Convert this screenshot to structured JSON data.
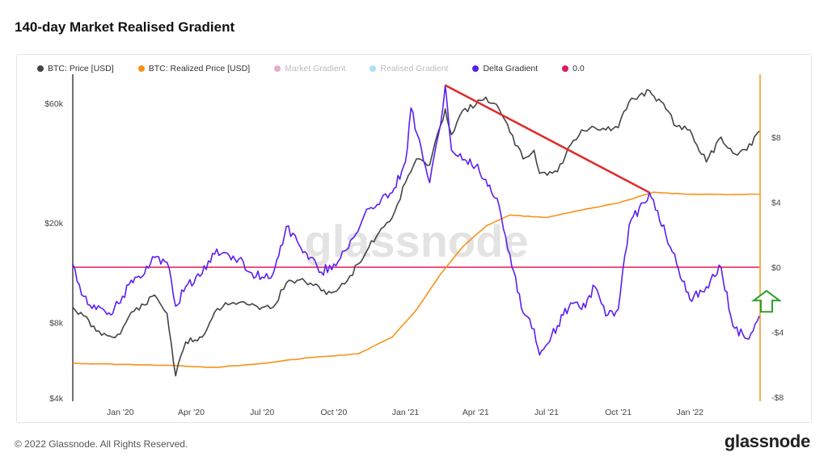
{
  "page": {
    "title": "140-day Market Realised Gradient",
    "footer": "© 2022 Glassnode. All Rights Reserved.",
    "brand": "glassnode",
    "watermark": "glassnode"
  },
  "legend": [
    {
      "label": "BTC: Price [USD]",
      "color": "#444444",
      "faded": false
    },
    {
      "label": "BTC: Realized Price [USD]",
      "color": "#f7931a",
      "faded": false
    },
    {
      "label": "Market Gradient",
      "color": "#d58ab5",
      "faded": true
    },
    {
      "label": "Realised Gradient",
      "color": "#8fd0e6",
      "faded": true
    },
    {
      "label": "Delta Gradient",
      "color": "#5b1ff0",
      "faded": false
    },
    {
      "label": "0.0",
      "color": "#e0185a",
      "faded": false
    }
  ],
  "chart_data": {
    "type": "line",
    "title": "140-day Market Realised Gradient",
    "x_ticks": [
      "Jan '20",
      "Apr '20",
      "Jul '20",
      "Oct '20",
      "Jan '21",
      "Apr '21",
      "Jul '21",
      "Oct '21",
      "Jan '22"
    ],
    "y_left": {
      "scale": "log",
      "ticks": [
        "$4k",
        "$8k",
        "$20k",
        "$60k"
      ],
      "tick_values": [
        4000,
        8000,
        20000,
        60000
      ]
    },
    "y_right": {
      "ticks": [
        "$8",
        "$4",
        "$0",
        "-$4",
        "-$8"
      ],
      "tick_values": [
        8,
        4,
        0,
        -4,
        -8
      ],
      "range": [
        -8,
        12
      ]
    },
    "series": [
      {
        "name": "BTC: Price [USD]",
        "axis": "left",
        "color": "#444444",
        "points": [
          [
            "2019-11-01",
            9200
          ],
          [
            "2019-11-15",
            8500
          ],
          [
            "2019-12-01",
            7400
          ],
          [
            "2019-12-15",
            7100
          ],
          [
            "2020-01-01",
            7200
          ],
          [
            "2020-01-15",
            8800
          ],
          [
            "2020-02-01",
            9400
          ],
          [
            "2020-02-14",
            10300
          ],
          [
            "2020-03-01",
            8700
          ],
          [
            "2020-03-12",
            4900
          ],
          [
            "2020-03-25",
            6700
          ],
          [
            "2020-04-15",
            7000
          ],
          [
            "2020-05-01",
            8800
          ],
          [
            "2020-05-15",
            9600
          ],
          [
            "2020-06-01",
            9600
          ],
          [
            "2020-06-15",
            9400
          ],
          [
            "2020-07-01",
            9200
          ],
          [
            "2020-07-15",
            9200
          ],
          [
            "2020-08-01",
            11500
          ],
          [
            "2020-08-15",
            11800
          ],
          [
            "2020-09-01",
            11500
          ],
          [
            "2020-09-15",
            10700
          ],
          [
            "2020-10-01",
            10600
          ],
          [
            "2020-10-15",
            11400
          ],
          [
            "2020-11-01",
            13700
          ],
          [
            "2020-11-15",
            16000
          ],
          [
            "2020-12-01",
            19000
          ],
          [
            "2020-12-15",
            21000
          ],
          [
            "2021-01-01",
            29000
          ],
          [
            "2021-01-15",
            36000
          ],
          [
            "2021-02-01",
            34000
          ],
          [
            "2021-02-15",
            49000
          ],
          [
            "2021-02-21",
            57000
          ],
          [
            "2021-03-01",
            45000
          ],
          [
            "2021-03-15",
            56000
          ],
          [
            "2021-04-01",
            59000
          ],
          [
            "2021-04-14",
            63500
          ],
          [
            "2021-05-01",
            57000
          ],
          [
            "2021-05-15",
            46000
          ],
          [
            "2021-06-01",
            36000
          ],
          [
            "2021-06-15",
            39000
          ],
          [
            "2021-06-22",
            31500
          ],
          [
            "2021-07-15",
            32000
          ],
          [
            "2021-08-01",
            41000
          ],
          [
            "2021-08-15",
            47000
          ],
          [
            "2021-09-01",
            48000
          ],
          [
            "2021-09-15",
            47000
          ],
          [
            "2021-10-01",
            48000
          ],
          [
            "2021-10-15",
            61000
          ],
          [
            "2021-11-10",
            67500
          ],
          [
            "2021-12-01",
            57000
          ],
          [
            "2021-12-15",
            48500
          ],
          [
            "2022-01-01",
            47000
          ],
          [
            "2022-01-22",
            35000
          ],
          [
            "2022-02-10",
            44000
          ],
          [
            "2022-02-25",
            38000
          ],
          [
            "2022-03-15",
            39000
          ],
          [
            "2022-03-31",
            46500
          ]
        ]
      },
      {
        "name": "BTC: Realized Price [USD]",
        "axis": "left",
        "color": "#f7931a",
        "points": [
          [
            "2019-11-01",
            5500
          ],
          [
            "2020-01-01",
            5450
          ],
          [
            "2020-03-01",
            5400
          ],
          [
            "2020-05-01",
            5300
          ],
          [
            "2020-07-01",
            5500
          ],
          [
            "2020-09-01",
            5800
          ],
          [
            "2020-11-01",
            6000
          ],
          [
            "2020-12-15",
            7000
          ],
          [
            "2021-01-15",
            9000
          ],
          [
            "2021-02-15",
            12500
          ],
          [
            "2021-03-15",
            16000
          ],
          [
            "2021-04-15",
            19500
          ],
          [
            "2021-05-15",
            21500
          ],
          [
            "2021-07-01",
            21000
          ],
          [
            "2021-08-15",
            22500
          ],
          [
            "2021-10-01",
            24000
          ],
          [
            "2021-11-15",
            26500
          ],
          [
            "2022-01-01",
            26000
          ],
          [
            "2022-03-31",
            26000
          ]
        ]
      },
      {
        "name": "Delta Gradient",
        "axis": "right",
        "color": "#5b1ff0",
        "points": [
          [
            "2019-11-01",
            0.2
          ],
          [
            "2019-11-15",
            -1.8
          ],
          [
            "2019-12-01",
            -2.6
          ],
          [
            "2019-12-15",
            -2.9
          ],
          [
            "2020-01-01",
            -2.2
          ],
          [
            "2020-01-15",
            -0.8
          ],
          [
            "2020-02-01",
            -0.4
          ],
          [
            "2020-02-14",
            0.6
          ],
          [
            "2020-03-01",
            0.3
          ],
          [
            "2020-03-12",
            -2.4
          ],
          [
            "2020-03-25",
            -1.2
          ],
          [
            "2020-04-15",
            -0.4
          ],
          [
            "2020-05-01",
            0.8
          ],
          [
            "2020-05-15",
            0.9
          ],
          [
            "2020-06-01",
            0.5
          ],
          [
            "2020-06-15",
            -0.3
          ],
          [
            "2020-07-01",
            -0.6
          ],
          [
            "2020-07-15",
            -0.4
          ],
          [
            "2020-08-01",
            2.5
          ],
          [
            "2020-08-15",
            1.6
          ],
          [
            "2020-09-01",
            0.6
          ],
          [
            "2020-09-15",
            -0.3
          ],
          [
            "2020-10-01",
            0.2
          ],
          [
            "2020-10-15",
            1.0
          ],
          [
            "2020-11-01",
            2.2
          ],
          [
            "2020-11-15",
            3.6
          ],
          [
            "2020-12-01",
            4.2
          ],
          [
            "2020-12-15",
            4.6
          ],
          [
            "2021-01-01",
            6.5
          ],
          [
            "2021-01-08",
            9.8
          ],
          [
            "2021-02-01",
            5.2
          ],
          [
            "2021-02-15",
            8.8
          ],
          [
            "2021-02-21",
            11.2
          ],
          [
            "2021-03-01",
            7.2
          ],
          [
            "2021-03-15",
            6.6
          ],
          [
            "2021-04-01",
            6.2
          ],
          [
            "2021-04-14",
            5.4
          ],
          [
            "2021-05-01",
            3.8
          ],
          [
            "2021-05-15",
            0.8
          ],
          [
            "2021-06-01",
            -2.8
          ],
          [
            "2021-06-15",
            -3.8
          ],
          [
            "2021-06-22",
            -5.4
          ],
          [
            "2021-07-15",
            -3.6
          ],
          [
            "2021-08-01",
            -2.2
          ],
          [
            "2021-08-15",
            -2.6
          ],
          [
            "2021-09-01",
            -1.2
          ],
          [
            "2021-09-15",
            -3.0
          ],
          [
            "2021-10-01",
            -2.6
          ],
          [
            "2021-10-15",
            2.6
          ],
          [
            "2021-11-10",
            4.6
          ],
          [
            "2021-12-01",
            2.0
          ],
          [
            "2021-12-15",
            0.2
          ],
          [
            "2022-01-01",
            -2.0
          ],
          [
            "2022-01-22",
            -1.2
          ],
          [
            "2022-02-10",
            0.0
          ],
          [
            "2022-02-25",
            -3.6
          ],
          [
            "2022-03-15",
            -4.4
          ],
          [
            "2022-03-31",
            -3.0
          ]
        ]
      },
      {
        "name": "0.0",
        "axis": "right",
        "color": "#e0185a",
        "points": [
          [
            "2019-11-01",
            0
          ],
          [
            "2022-03-31",
            0
          ]
        ]
      }
    ],
    "annotations": [
      {
        "type": "trendline",
        "color": "#e02a2a",
        "from": [
          "2021-02-21",
          11.2
        ],
        "to": [
          "2021-11-10",
          4.6
        ]
      },
      {
        "type": "arrow-up",
        "color": "#2ca02c",
        "at": [
          "2022-04-10",
          -2.1
        ]
      }
    ]
  }
}
